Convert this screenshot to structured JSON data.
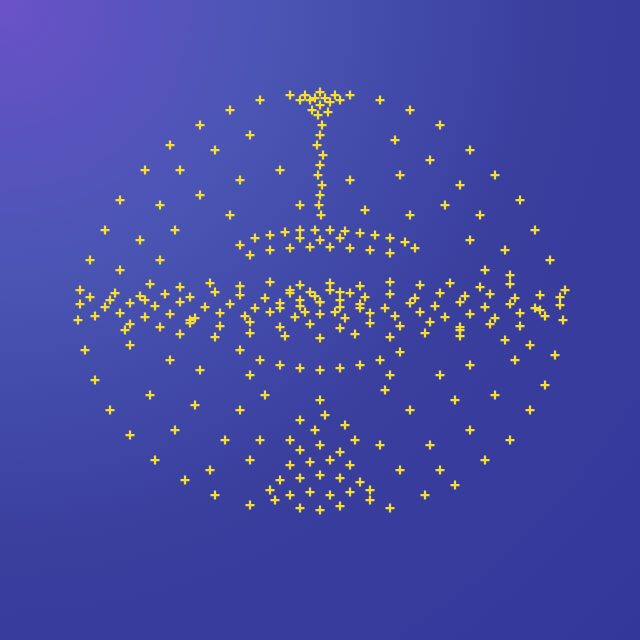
{
  "chart_data": {
    "type": "scatter",
    "color": "#f6df30",
    "marker": "plus",
    "tick_labels": false,
    "grid": false,
    "xlim": [
      0,
      640
    ],
    "ylim": [
      0,
      640
    ],
    "points": [
      [
        230,
        530
      ],
      [
        260,
        540
      ],
      [
        290,
        545
      ],
      [
        350,
        545
      ],
      [
        380,
        540
      ],
      [
        410,
        530
      ],
      [
        200,
        515
      ],
      [
        440,
        515
      ],
      [
        170,
        495
      ],
      [
        470,
        490
      ],
      [
        145,
        470
      ],
      [
        495,
        465
      ],
      [
        120,
        440
      ],
      [
        520,
        440
      ],
      [
        105,
        410
      ],
      [
        535,
        410
      ],
      [
        90,
        380
      ],
      [
        550,
        380
      ],
      [
        80,
        350
      ],
      [
        565,
        350
      ],
      [
        78,
        320
      ],
      [
        563,
        320
      ],
      [
        85,
        290
      ],
      [
        555,
        285
      ],
      [
        95,
        260
      ],
      [
        545,
        255
      ],
      [
        110,
        230
      ],
      [
        530,
        230
      ],
      [
        130,
        205
      ],
      [
        510,
        200
      ],
      [
        155,
        180
      ],
      [
        485,
        180
      ],
      [
        185,
        160
      ],
      [
        455,
        155
      ],
      [
        215,
        145
      ],
      [
        425,
        145
      ],
      [
        250,
        135
      ],
      [
        390,
        132
      ],
      [
        180,
        470
      ],
      [
        215,
        490
      ],
      [
        250,
        505
      ],
      [
        395,
        500
      ],
      [
        430,
        480
      ],
      [
        460,
        455
      ],
      [
        160,
        435
      ],
      [
        200,
        445
      ],
      [
        240,
        460
      ],
      [
        400,
        465
      ],
      [
        445,
        435
      ],
      [
        480,
        425
      ],
      [
        140,
        400
      ],
      [
        175,
        410
      ],
      [
        470,
        400
      ],
      [
        505,
        390
      ],
      [
        120,
        370
      ],
      [
        510,
        365
      ],
      [
        130,
        295
      ],
      [
        170,
        280
      ],
      [
        470,
        275
      ],
      [
        515,
        280
      ],
      [
        150,
        245
      ],
      [
        195,
        235
      ],
      [
        240,
        230
      ],
      [
        410,
        230
      ],
      [
        455,
        240
      ],
      [
        495,
        245
      ],
      [
        175,
        210
      ],
      [
        225,
        200
      ],
      [
        430,
        195
      ],
      [
        470,
        210
      ],
      [
        210,
        170
      ],
      [
        250,
        180
      ],
      [
        400,
        170
      ],
      [
        440,
        170
      ],
      [
        270,
        150
      ],
      [
        370,
        150
      ],
      [
        350,
        460
      ],
      [
        280,
        470
      ],
      [
        300,
        435
      ],
      [
        365,
        430
      ],
      [
        230,
        425
      ],
      [
        410,
        425
      ],
      [
        265,
        245
      ],
      [
        385,
        250
      ],
      [
        300,
        220
      ],
      [
        345,
        215
      ],
      [
        190,
        320
      ],
      [
        460,
        310
      ],
      [
        110,
        340
      ],
      [
        540,
        330
      ],
      [
        125,
        310
      ],
      [
        145,
        340
      ],
      [
        505,
        300
      ],
      [
        530,
        295
      ],
      [
        200,
        270
      ],
      [
        440,
        265
      ],
      [
        260,
        200
      ],
      [
        380,
        195
      ],
      [
        160,
        380
      ],
      [
        485,
        370
      ],
      [
        320,
        548
      ],
      [
        315,
        542
      ],
      [
        325,
        542
      ],
      [
        305,
        545
      ],
      [
        335,
        545
      ],
      [
        320,
        535
      ],
      [
        318,
        525
      ],
      [
        322,
        515
      ],
      [
        320,
        505
      ],
      [
        317,
        495
      ],
      [
        323,
        485
      ],
      [
        320,
        475
      ],
      [
        318,
        465
      ],
      [
        322,
        455
      ],
      [
        320,
        445
      ],
      [
        319,
        435
      ],
      [
        321,
        425
      ],
      [
        310,
        540
      ],
      [
        330,
        538
      ],
      [
        300,
        540
      ],
      [
        340,
        540
      ],
      [
        312,
        530
      ],
      [
        328,
        528
      ],
      [
        240,
        395
      ],
      [
        255,
        402
      ],
      [
        270,
        405
      ],
      [
        285,
        408
      ],
      [
        300,
        410
      ],
      [
        315,
        410
      ],
      [
        330,
        410
      ],
      [
        345,
        409
      ],
      [
        360,
        407
      ],
      [
        375,
        405
      ],
      [
        390,
        402
      ],
      [
        405,
        398
      ],
      [
        415,
        392
      ],
      [
        250,
        385
      ],
      [
        270,
        390
      ],
      [
        290,
        392
      ],
      [
        310,
        393
      ],
      [
        330,
        393
      ],
      [
        350,
        392
      ],
      [
        370,
        390
      ],
      [
        390,
        387
      ],
      [
        300,
        402
      ],
      [
        340,
        402
      ],
      [
        320,
        400
      ],
      [
        150,
        356
      ],
      [
        180,
        353
      ],
      [
        210,
        357
      ],
      [
        240,
        354
      ],
      [
        270,
        358
      ],
      [
        300,
        355
      ],
      [
        330,
        357
      ],
      [
        360,
        354
      ],
      [
        390,
        358
      ],
      [
        420,
        355
      ],
      [
        450,
        357
      ],
      [
        480,
        353
      ],
      [
        510,
        356
      ],
      [
        90,
        343
      ],
      [
        115,
        347
      ],
      [
        140,
        344
      ],
      [
        165,
        346
      ],
      [
        190,
        343
      ],
      [
        215,
        348
      ],
      [
        240,
        345
      ],
      [
        265,
        342
      ],
      [
        290,
        347
      ],
      [
        315,
        344
      ],
      [
        340,
        348
      ],
      [
        365,
        343
      ],
      [
        390,
        346
      ],
      [
        415,
        342
      ],
      [
        440,
        347
      ],
      [
        465,
        344
      ],
      [
        490,
        346
      ],
      [
        515,
        342
      ],
      [
        540,
        345
      ],
      [
        560,
        343
      ],
      [
        80,
        336
      ],
      [
        105,
        333
      ],
      [
        130,
        337
      ],
      [
        155,
        334
      ],
      [
        180,
        338
      ],
      [
        205,
        333
      ],
      [
        230,
        336
      ],
      [
        255,
        332
      ],
      [
        280,
        337
      ],
      [
        300,
        334
      ],
      [
        320,
        338
      ],
      [
        340,
        333
      ],
      [
        360,
        336
      ],
      [
        385,
        332
      ],
      [
        410,
        337
      ],
      [
        435,
        334
      ],
      [
        460,
        338
      ],
      [
        485,
        333
      ],
      [
        510,
        336
      ],
      [
        535,
        332
      ],
      [
        560,
        335
      ],
      [
        95,
        324
      ],
      [
        120,
        327
      ],
      [
        145,
        323
      ],
      [
        170,
        326
      ],
      [
        195,
        322
      ],
      [
        220,
        327
      ],
      [
        245,
        324
      ],
      [
        270,
        328
      ],
      [
        295,
        323
      ],
      [
        320,
        326
      ],
      [
        345,
        322
      ],
      [
        370,
        327
      ],
      [
        395,
        324
      ],
      [
        420,
        328
      ],
      [
        445,
        323
      ],
      [
        470,
        326
      ],
      [
        495,
        322
      ],
      [
        520,
        327
      ],
      [
        545,
        324
      ],
      [
        130,
        316
      ],
      [
        160,
        313
      ],
      [
        190,
        317
      ],
      [
        220,
        314
      ],
      [
        250,
        318
      ],
      [
        280,
        313
      ],
      [
        310,
        316
      ],
      [
        340,
        312
      ],
      [
        370,
        317
      ],
      [
        400,
        314
      ],
      [
        430,
        318
      ],
      [
        460,
        313
      ],
      [
        490,
        316
      ],
      [
        520,
        314
      ],
      [
        180,
        306
      ],
      [
        215,
        303
      ],
      [
        250,
        307
      ],
      [
        285,
        304
      ],
      [
        320,
        302
      ],
      [
        355,
        306
      ],
      [
        390,
        303
      ],
      [
        425,
        307
      ],
      [
        460,
        304
      ],
      [
        290,
        350
      ],
      [
        310,
        348
      ],
      [
        330,
        350
      ],
      [
        350,
        347
      ],
      [
        300,
        340
      ],
      [
        320,
        338
      ],
      [
        340,
        340
      ],
      [
        280,
        332
      ],
      [
        360,
        332
      ],
      [
        305,
        328
      ],
      [
        335,
        328
      ],
      [
        240,
        290
      ],
      [
        260,
        280
      ],
      [
        280,
        275
      ],
      [
        300,
        272
      ],
      [
        320,
        270
      ],
      [
        340,
        272
      ],
      [
        360,
        275
      ],
      [
        380,
        280
      ],
      [
        400,
        288
      ],
      [
        250,
        265
      ],
      [
        390,
        265
      ],
      [
        300,
        190
      ],
      [
        320,
        195
      ],
      [
        340,
        188
      ],
      [
        290,
        175
      ],
      [
        310,
        178
      ],
      [
        330,
        180
      ],
      [
        350,
        175
      ],
      [
        280,
        160
      ],
      [
        300,
        162
      ],
      [
        320,
        165
      ],
      [
        340,
        162
      ],
      [
        360,
        158
      ],
      [
        290,
        145
      ],
      [
        310,
        148
      ],
      [
        330,
        145
      ],
      [
        350,
        148
      ],
      [
        300,
        132
      ],
      [
        320,
        130
      ],
      [
        340,
        134
      ],
      [
        275,
        140
      ],
      [
        370,
        140
      ],
      [
        315,
        210
      ],
      [
        325,
        225
      ],
      [
        320,
        240
      ],
      [
        290,
        200
      ],
      [
        355,
        200
      ]
    ]
  }
}
